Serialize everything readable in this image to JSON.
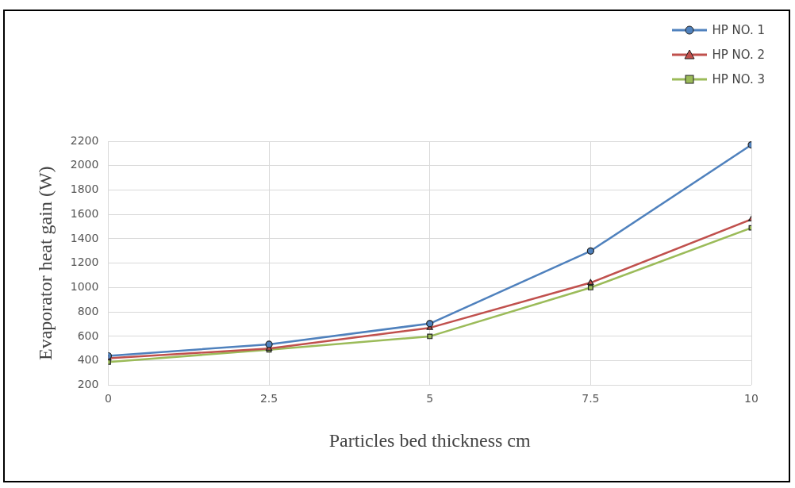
{
  "chart_data": {
    "type": "line",
    "xlabel": "Particles bed thickness cm",
    "ylabel": "Evaporator heat gain (W)",
    "x": [
      0,
      2.5,
      5,
      7.5,
      10
    ],
    "xlim": [
      0,
      10
    ],
    "xticks": [
      0,
      2.5,
      5,
      7.5,
      10
    ],
    "ylim": [
      200,
      2200
    ],
    "yticks": [
      200,
      400,
      600,
      800,
      1000,
      1200,
      1400,
      1600,
      1800,
      2000,
      2200
    ],
    "series": [
      {
        "name": "HP NO. 1",
        "color": "#4f81bd",
        "marker": "circle",
        "values": [
          440,
          535,
          705,
          1300,
          2170
        ]
      },
      {
        "name": "HP NO. 2",
        "color": "#c0504d",
        "marker": "triangle",
        "values": [
          420,
          500,
          670,
          1040,
          1560
        ]
      },
      {
        "name": "HP NO. 3",
        "color": "#9bbb59",
        "marker": "square",
        "values": [
          390,
          490,
          600,
          1000,
          1490
        ]
      }
    ],
    "grid": true,
    "legend": "top right",
    "line_style": "solid"
  }
}
